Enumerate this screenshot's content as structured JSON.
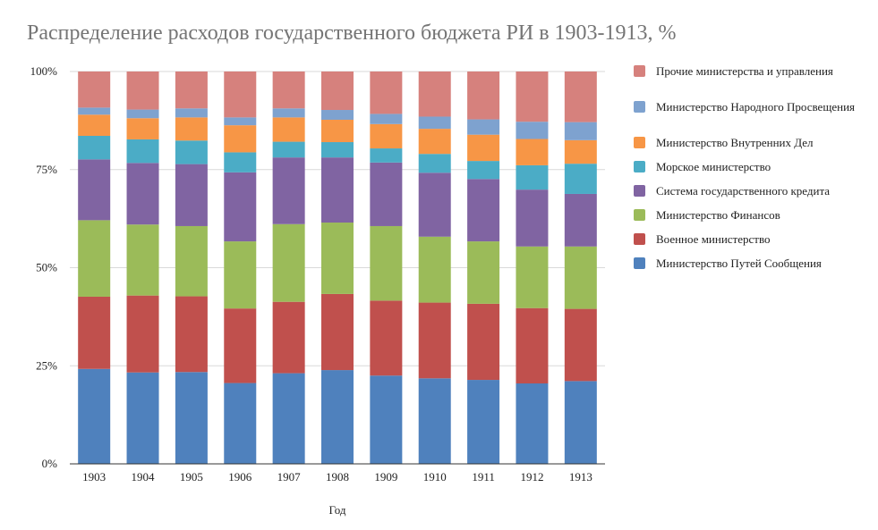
{
  "chart_data": {
    "type": "bar",
    "stacked": "percent",
    "title": "Распределение расходов государственного бюджета РИ в 1903-1913, %",
    "xlabel": "Год",
    "ylabel": "",
    "ylim": [
      0,
      100
    ],
    "yticks": [
      "0%",
      "25%",
      "50%",
      "75%",
      "100%"
    ],
    "grid": true,
    "legend_position": "right",
    "categories": [
      "1903",
      "1904",
      "1905",
      "1906",
      "1907",
      "1908",
      "1909",
      "1910",
      "1911",
      "1912",
      "1913"
    ],
    "series": [
      {
        "name": "Министерство Путей Сообщения",
        "color": "#4f81bd",
        "values": [
          24.2,
          23.3,
          23.4,
          20.6,
          23.1,
          23.9,
          22.5,
          21.8,
          21.4,
          20.5,
          21.1
        ]
      },
      {
        "name": "Военное министерство",
        "color": "#c0504d",
        "values": [
          18.4,
          19.6,
          19.3,
          19.0,
          18.2,
          19.4,
          19.1,
          19.3,
          19.4,
          19.2,
          18.4
        ]
      },
      {
        "name": "Министерство Финансов",
        "color": "#9bbb59",
        "values": [
          19.5,
          18.1,
          17.9,
          17.1,
          19.8,
          18.2,
          19.0,
          16.8,
          15.9,
          15.7,
          15.9
        ]
      },
      {
        "name": "Система государственного кредита",
        "color": "#8064a2",
        "values": [
          15.5,
          15.7,
          15.8,
          17.6,
          17.0,
          16.6,
          16.2,
          16.3,
          15.9,
          14.5,
          13.4
        ]
      },
      {
        "name": "Морское министерство",
        "color": "#4bacc6",
        "values": [
          6.0,
          6.0,
          6.0,
          5.1,
          4.0,
          3.9,
          3.6,
          4.8,
          4.6,
          6.2,
          7.7
        ]
      },
      {
        "name": "Министерство Внутренних Дел",
        "color": "#f79646",
        "values": [
          5.4,
          5.4,
          5.9,
          6.9,
          6.2,
          5.7,
          6.2,
          6.4,
          6.7,
          6.7,
          6.0
        ]
      },
      {
        "name": "Министерство Народного Просвещения",
        "color": "#7ea2cf",
        "values": [
          1.8,
          2.2,
          2.3,
          2.0,
          2.3,
          2.5,
          2.6,
          3.1,
          3.9,
          4.4,
          4.6
        ]
      },
      {
        "name": "Прочие министерства и управления",
        "color": "#d6817d",
        "values": [
          9.2,
          9.7,
          9.4,
          11.7,
          9.4,
          9.8,
          10.8,
          11.5,
          12.2,
          12.8,
          12.9
        ]
      }
    ]
  }
}
